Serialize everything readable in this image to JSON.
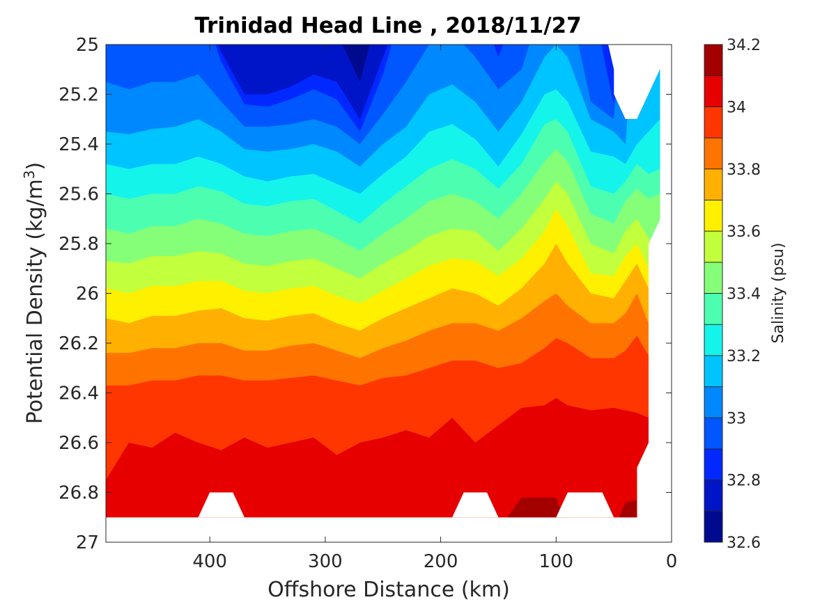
{
  "chart_data": {
    "type": "filled-contour",
    "title": "Trinidad Head Line , 2018/11/27",
    "xlabel": "Offshore Distance (km)",
    "ylabel_main": "Potential Density (kg/m",
    "ylabel_sup": "3",
    "ylabel_close": ")",
    "colorbar_label": "Salinity (psu)",
    "xlim": [
      490,
      0
    ],
    "ylim": [
      25,
      27
    ],
    "x_ticks": [
      400,
      300,
      200,
      100,
      0
    ],
    "x_tick_labels": [
      "400",
      "300",
      "200",
      "100",
      "0"
    ],
    "y_ticks": [
      25,
      25.2,
      25.4,
      25.6,
      25.8,
      26,
      26.2,
      26.4,
      26.6,
      26.8,
      27
    ],
    "y_tick_labels": [
      "25",
      "25.2",
      "25.4",
      "25.6",
      "25.8",
      "26",
      "26.2",
      "26.4",
      "26.6",
      "26.8",
      "27"
    ],
    "colorbar_range": [
      32.6,
      34.2
    ],
    "colorbar_ticks": [
      32.6,
      32.8,
      33,
      33.2,
      33.4,
      33.6,
      33.8,
      34,
      34.2
    ],
    "colorbar_tick_labels": [
      "32.6",
      "32.8",
      "33",
      "33.2",
      "33.4",
      "33.6",
      "33.8",
      "34",
      "34.2"
    ],
    "levels": [
      {
        "min": 32.6,
        "max": 32.7,
        "color": "#000a8f"
      },
      {
        "min": 32.7,
        "max": 32.8,
        "color": "#0014c8"
      },
      {
        "min": 32.8,
        "max": 32.9,
        "color": "#0028ff"
      },
      {
        "min": 32.9,
        "max": 33.0,
        "color": "#0056ff"
      },
      {
        "min": 33.0,
        "max": 33.1,
        "color": "#0088ff"
      },
      {
        "min": 33.1,
        "max": 33.2,
        "color": "#00c4ff"
      },
      {
        "min": 33.2,
        "max": 33.3,
        "color": "#14f4eb"
      },
      {
        "min": 33.3,
        "max": 33.4,
        "color": "#4cffb0"
      },
      {
        "min": 33.4,
        "max": 33.5,
        "color": "#86ff78"
      },
      {
        "min": 33.5,
        "max": 33.6,
        "color": "#c2ff3c"
      },
      {
        "min": 33.6,
        "max": 33.7,
        "color": "#fff000"
      },
      {
        "min": 33.7,
        "max": 33.8,
        "color": "#ffb000"
      },
      {
        "min": 33.8,
        "max": 33.9,
        "color": "#ff7400"
      },
      {
        "min": 33.9,
        "max": 34.0,
        "color": "#ff3600"
      },
      {
        "min": 34.0,
        "max": 34.1,
        "color": "#e60000"
      },
      {
        "min": 34.1,
        "max": 34.2,
        "color": "#a40000"
      }
    ],
    "contour_x_km": [
      490,
      470,
      450,
      430,
      410,
      390,
      370,
      350,
      330,
      310,
      290,
      270,
      250,
      230,
      210,
      190,
      170,
      150,
      130,
      110,
      100,
      90,
      70,
      50,
      40,
      30,
      20,
      10
    ],
    "boundaries_density": [
      [
        24.8,
        24.8,
        24.8,
        24.8,
        24.8,
        24.8,
        24.8,
        24.8,
        24.8,
        24.8,
        24.95,
        25.15,
        24.8,
        24.8,
        24.8,
        24.8,
        24.8,
        24.8,
        24.8,
        24.8,
        24.8,
        24.8,
        24.8,
        24.8,
        24.8,
        24.8,
        24.8,
        24.8
      ],
      [
        24.8,
        24.8,
        24.8,
        24.8,
        24.8,
        25.03,
        25.2,
        25.2,
        25.17,
        25.12,
        25.15,
        25.3,
        25.05,
        24.8,
        24.8,
        24.8,
        24.8,
        24.95,
        24.8,
        24.8,
        24.8,
        24.8,
        24.8,
        24.8,
        24.8,
        24.8,
        24.8,
        24.8
      ],
      [
        24.8,
        24.8,
        24.8,
        24.8,
        24.8,
        25.07,
        25.24,
        25.25,
        25.22,
        25.18,
        25.22,
        25.35,
        25.12,
        24.8,
        24.8,
        24.8,
        24.8,
        25.05,
        24.8,
        24.8,
        24.8,
        24.8,
        24.8,
        25.24,
        24.8,
        24.8,
        24.8,
        24.8
      ],
      [
        25.15,
        25.18,
        25.15,
        25.15,
        25.12,
        25.23,
        25.33,
        25.33,
        25.32,
        25.3,
        25.33,
        25.4,
        25.28,
        25.15,
        25.0,
        24.95,
        25.05,
        25.18,
        25.1,
        24.8,
        24.8,
        24.8,
        25.23,
        25.3,
        24.8,
        24.8,
        24.8,
        24.8
      ],
      [
        25.35,
        25.36,
        25.34,
        25.33,
        25.3,
        25.35,
        25.42,
        25.43,
        25.42,
        25.4,
        25.43,
        25.49,
        25.4,
        25.33,
        25.2,
        25.16,
        25.23,
        25.35,
        25.23,
        25.05,
        25.0,
        25.05,
        25.3,
        25.35,
        25.4,
        24.8,
        24.8,
        24.8
      ],
      [
        25.48,
        25.5,
        25.48,
        25.48,
        25.45,
        25.48,
        25.53,
        25.55,
        25.53,
        25.52,
        25.56,
        25.6,
        25.52,
        25.45,
        25.35,
        25.32,
        25.38,
        25.49,
        25.36,
        25.2,
        25.18,
        25.23,
        25.43,
        25.45,
        25.48,
        25.4,
        25.35,
        25.3
      ],
      [
        25.6,
        25.62,
        25.6,
        25.6,
        25.57,
        25.59,
        25.64,
        25.65,
        25.63,
        25.62,
        25.67,
        25.72,
        25.64,
        25.57,
        25.5,
        25.46,
        25.5,
        25.58,
        25.48,
        25.32,
        25.3,
        25.35,
        25.57,
        25.6,
        25.55,
        25.48,
        25.52,
        25.5
      ],
      [
        25.74,
        25.76,
        25.73,
        25.73,
        25.7,
        25.72,
        25.76,
        25.77,
        25.75,
        25.74,
        25.78,
        25.83,
        25.76,
        25.7,
        25.63,
        25.6,
        25.63,
        25.7,
        25.6,
        25.47,
        25.42,
        25.47,
        25.68,
        25.72,
        25.63,
        25.58,
        25.62,
        25.6
      ],
      [
        25.87,
        25.88,
        25.85,
        25.85,
        25.83,
        25.84,
        25.88,
        25.89,
        25.87,
        25.86,
        25.9,
        25.94,
        25.88,
        25.83,
        25.77,
        25.74,
        25.75,
        25.83,
        25.74,
        25.62,
        25.55,
        25.6,
        25.8,
        25.84,
        25.75,
        25.7,
        25.78,
        25.8
      ],
      [
        25.98,
        26.0,
        25.97,
        25.97,
        25.95,
        25.95,
        25.99,
        26.0,
        25.98,
        25.97,
        26.01,
        26.04,
        25.99,
        25.94,
        25.89,
        25.86,
        25.87,
        25.93,
        25.86,
        25.75,
        25.66,
        25.73,
        25.92,
        25.93,
        25.85,
        25.8,
        25.9,
        25.9
      ],
      [
        26.1,
        26.12,
        26.09,
        26.09,
        26.07,
        26.06,
        26.1,
        26.11,
        26.09,
        26.08,
        26.12,
        26.15,
        26.1,
        26.06,
        26.02,
        25.98,
        26.0,
        26.05,
        25.98,
        25.88,
        25.8,
        25.88,
        26.0,
        26.02,
        25.95,
        25.88,
        25.98,
        26.04
      ],
      [
        26.24,
        26.24,
        26.22,
        26.22,
        26.2,
        26.2,
        26.23,
        26.23,
        26.21,
        26.2,
        26.23,
        26.26,
        26.22,
        26.19,
        26.15,
        26.12,
        26.12,
        26.15,
        26.1,
        26.03,
        26.0,
        26.05,
        26.12,
        26.12,
        26.08,
        26.0,
        26.12,
        26.2
      ],
      [
        26.37,
        26.37,
        26.35,
        26.35,
        26.33,
        26.33,
        26.35,
        26.35,
        26.34,
        26.33,
        26.35,
        26.37,
        26.34,
        26.33,
        26.3,
        26.27,
        26.27,
        26.3,
        26.28,
        26.22,
        26.18,
        26.2,
        26.26,
        26.26,
        26.23,
        26.17,
        26.25,
        26.3
      ],
      [
        26.75,
        26.6,
        26.62,
        26.56,
        26.6,
        26.63,
        26.58,
        26.62,
        26.6,
        26.58,
        26.65,
        26.6,
        26.58,
        26.55,
        26.58,
        26.5,
        26.6,
        26.53,
        26.46,
        26.45,
        26.42,
        26.45,
        26.47,
        26.46,
        26.47,
        26.48,
        26.5,
        26.5
      ],
      [
        26.95,
        26.95,
        26.95,
        26.95,
        26.95,
        26.95,
        26.95,
        26.95,
        26.95,
        26.95,
        26.95,
        26.95,
        26.95,
        26.95,
        26.95,
        26.95,
        26.95,
        26.95,
        26.82,
        26.82,
        26.82,
        26.95,
        26.95,
        26.95,
        26.84,
        26.83,
        26.95,
        26.95
      ]
    ]
  }
}
